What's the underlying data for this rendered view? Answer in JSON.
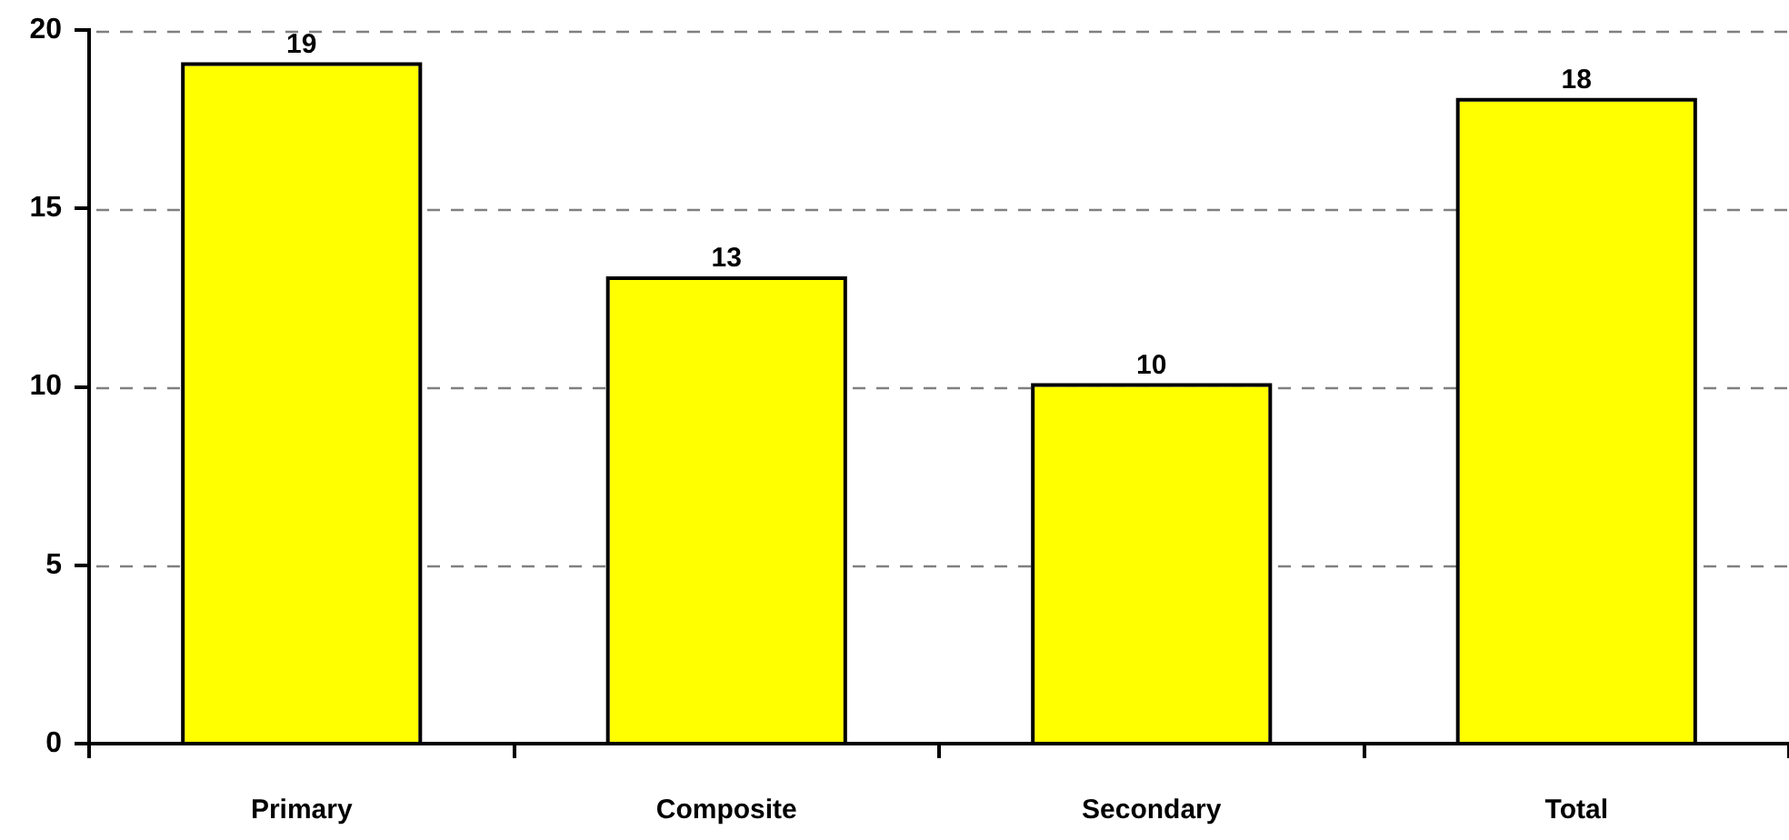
{
  "chart_data": {
    "type": "bar",
    "categories": [
      "Primary",
      "Composite",
      "Secondary",
      "Total"
    ],
    "values": [
      19,
      13,
      10,
      18
    ],
    "color": "#ffff00",
    "ylim": [
      0,
      20
    ],
    "yticks": [
      0,
      5,
      10,
      15,
      20
    ],
    "grid": "y",
    "data_labels": true
  }
}
